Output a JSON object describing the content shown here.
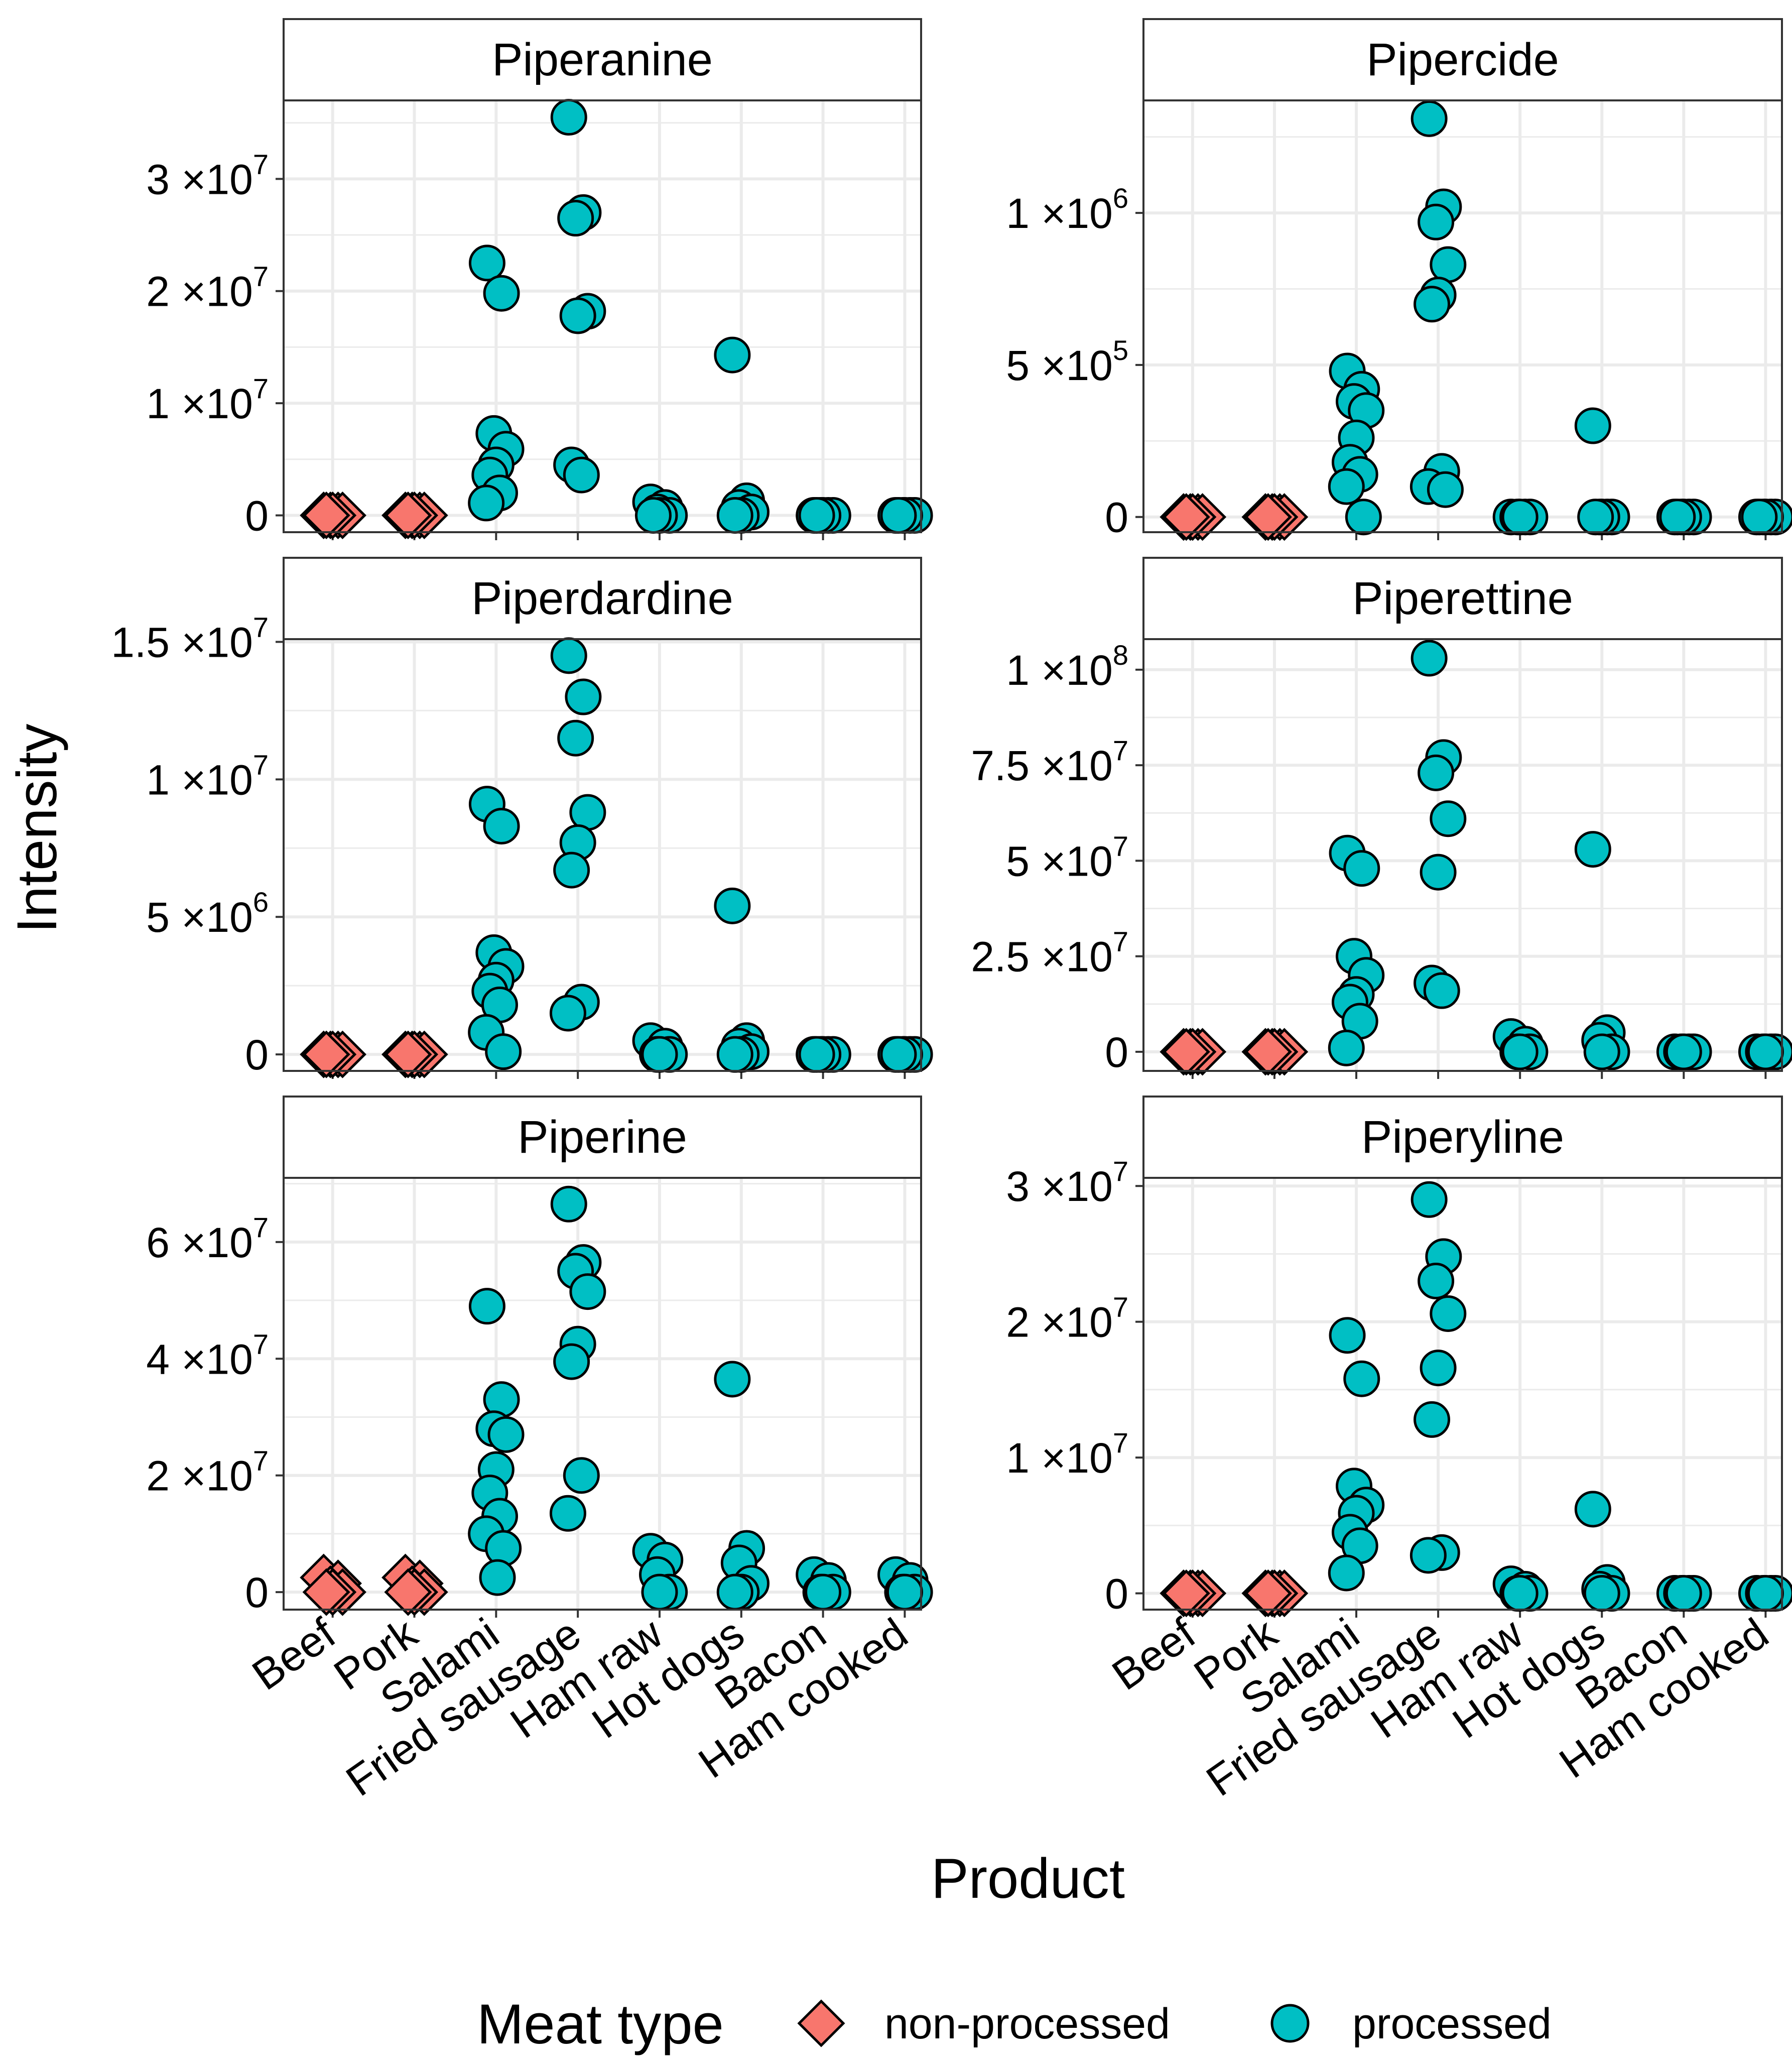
{
  "chart_data": {
    "type": "scatter",
    "xlabel": "Product",
    "ylabel": "Intensity",
    "categories": [
      "Beef",
      "Pork",
      "Salami",
      "Fried sausage",
      "Ham raw",
      "Hot dogs",
      "Bacon",
      "Ham cooked"
    ],
    "legend": {
      "title": "Meat type",
      "position": "bottom",
      "items": [
        {
          "label": "non-processed",
          "shape": "diamond",
          "color": "#F8766D"
        },
        {
          "label": "processed",
          "shape": "circle",
          "color": "#00BFC4"
        }
      ]
    },
    "category_group": [
      "non-processed",
      "non-processed",
      "processed",
      "processed",
      "processed",
      "processed",
      "processed",
      "processed"
    ],
    "panels": [
      {
        "title": "Piperanine",
        "ylim": [
          -1500000,
          37000000
        ],
        "yticks": [
          {
            "value": 0,
            "mant": "0",
            "exp": ""
          },
          {
            "value": 10000000,
            "mant": "1",
            "exp": "7"
          },
          {
            "value": 20000000,
            "mant": "2",
            "exp": "7"
          },
          {
            "value": 30000000,
            "mant": "3",
            "exp": "7"
          }
        ],
        "values": [
          [
            0,
            0,
            0,
            0,
            0,
            0
          ],
          [
            0,
            0,
            0,
            0,
            0,
            0
          ],
          [
            22500000,
            19800000,
            7300000,
            5900000,
            4500000,
            3600000,
            2000000,
            1100000
          ],
          [
            35500000,
            27000000,
            26500000,
            18200000,
            17800000,
            4500000,
            3600000
          ],
          [
            1200000,
            700000,
            300000,
            0,
            0,
            0
          ],
          [
            14300000,
            1300000,
            700000,
            300000,
            0,
            0
          ],
          [
            0,
            0,
            0,
            0,
            0,
            0
          ],
          [
            0,
            0,
            0,
            0,
            0,
            0
          ]
        ]
      },
      {
        "title": "Pipercide",
        "ylim": [
          -50000,
          1370000
        ],
        "yticks": [
          {
            "value": 0,
            "mant": "0",
            "exp": ""
          },
          {
            "value": 500000,
            "mant": "5",
            "exp": "5"
          },
          {
            "value": 1000000,
            "mant": "1",
            "exp": "6"
          }
        ],
        "values": [
          [
            0,
            0,
            0,
            0,
            0,
            0
          ],
          [
            0,
            0,
            0,
            0,
            0,
            0
          ],
          [
            480000,
            420000,
            380000,
            350000,
            260000,
            180000,
            140000,
            100000,
            0
          ],
          [
            1310000,
            1020000,
            970000,
            830000,
            730000,
            700000,
            150000,
            100000,
            90000
          ],
          [
            0,
            0,
            0,
            0,
            0
          ],
          [
            300000,
            0,
            0,
            0,
            0,
            0
          ],
          [
            0,
            0,
            0,
            0,
            0,
            0
          ],
          [
            0,
            0,
            0,
            0,
            0,
            0
          ]
        ]
      },
      {
        "title": "Piperdardine",
        "ylim": [
          -600000,
          15100000
        ],
        "yticks": [
          {
            "value": 0,
            "mant": "0",
            "exp": ""
          },
          {
            "value": 5000000,
            "mant": "5",
            "exp": "6"
          },
          {
            "value": 10000000,
            "mant": "1",
            "exp": "7"
          },
          {
            "value": 15000000,
            "mant": "1.5",
            "exp": "7"
          }
        ],
        "values": [
          [
            0,
            0,
            0,
            0,
            0,
            0
          ],
          [
            0,
            0,
            0,
            0,
            0,
            0
          ],
          [
            9100000,
            8300000,
            3700000,
            3200000,
            2700000,
            2300000,
            1800000,
            800000,
            100000
          ],
          [
            14500000,
            13000000,
            11500000,
            8800000,
            7700000,
            6700000,
            1900000,
            1500000
          ],
          [
            500000,
            300000,
            0,
            0,
            0
          ],
          [
            5400000,
            500000,
            300000,
            100000,
            0,
            0
          ],
          [
            0,
            0,
            0,
            0,
            0,
            0
          ],
          [
            0,
            0,
            0,
            0,
            0,
            0
          ]
        ]
      },
      {
        "title": "Piperettine",
        "ylim": [
          -5000000,
          108000000
        ],
        "yticks": [
          {
            "value": 0,
            "mant": "0",
            "exp": ""
          },
          {
            "value": 25000000,
            "mant": "2.5",
            "exp": "7"
          },
          {
            "value": 50000000,
            "mant": "5",
            "exp": "7"
          },
          {
            "value": 75000000,
            "mant": "7.5",
            "exp": "7"
          },
          {
            "value": 100000000,
            "mant": "1",
            "exp": "8"
          }
        ],
        "values": [
          [
            0,
            0,
            0,
            0,
            0,
            0
          ],
          [
            0,
            0,
            0,
            0,
            0,
            0
          ],
          [
            52000000,
            48000000,
            25000000,
            20000000,
            15000000,
            13000000,
            8000000,
            1000000
          ],
          [
            103000000,
            77000000,
            73000000,
            61000000,
            47000000,
            18000000,
            16000000
          ],
          [
            4000000,
            2000000,
            0,
            0,
            0
          ],
          [
            53000000,
            5000000,
            3000000,
            0,
            0
          ],
          [
            0,
            0,
            0,
            0,
            0
          ],
          [
            0,
            0,
            0,
            0,
            0
          ]
        ]
      },
      {
        "title": "Piperine",
        "ylim": [
          -3000000,
          71000000
        ],
        "yticks": [
          {
            "value": 0,
            "mant": "0",
            "exp": ""
          },
          {
            "value": 20000000,
            "mant": "2",
            "exp": "7"
          },
          {
            "value": 40000000,
            "mant": "4",
            "exp": "7"
          },
          {
            "value": 60000000,
            "mant": "6",
            "exp": "7"
          }
        ],
        "values": [
          [
            2500000,
            1500000,
            500000,
            0,
            0,
            0
          ],
          [
            2500000,
            1500000,
            500000,
            0,
            0,
            0
          ],
          [
            49000000,
            33000000,
            28000000,
            27000000,
            21000000,
            17000000,
            13000000,
            10000000,
            7500000,
            2500000
          ],
          [
            66500000,
            56500000,
            55000000,
            51500000,
            42500000,
            39500000,
            20000000,
            13500000
          ],
          [
            7000000,
            5500000,
            3000000,
            0,
            0
          ],
          [
            36500000,
            7500000,
            5000000,
            1500000,
            0,
            0
          ],
          [
            3000000,
            2000000,
            0,
            0,
            0
          ],
          [
            3000000,
            2000000,
            0,
            0,
            0
          ]
        ]
      },
      {
        "title": "Piperyline",
        "ylim": [
          -1200000,
          30600000
        ],
        "yticks": [
          {
            "value": 0,
            "mant": "0",
            "exp": ""
          },
          {
            "value": 10000000,
            "mant": "1",
            "exp": "7"
          },
          {
            "value": 20000000,
            "mant": "2",
            "exp": "7"
          },
          {
            "value": 30000000,
            "mant": "3",
            "exp": "7"
          }
        ],
        "values": [
          [
            0,
            0,
            0,
            0,
            0,
            0
          ],
          [
            0,
            0,
            0,
            0,
            0,
            0
          ],
          [
            19000000,
            15800000,
            7900000,
            6500000,
            5900000,
            4500000,
            3500000,
            1500000
          ],
          [
            29000000,
            24800000,
            23000000,
            20600000,
            16600000,
            12800000,
            3000000,
            2800000
          ],
          [
            700000,
            300000,
            0,
            0,
            0
          ],
          [
            6200000,
            800000,
            300000,
            0,
            0
          ],
          [
            0,
            0,
            0,
            0,
            0
          ],
          [
            0,
            0,
            0,
            0,
            0
          ]
        ]
      }
    ]
  }
}
